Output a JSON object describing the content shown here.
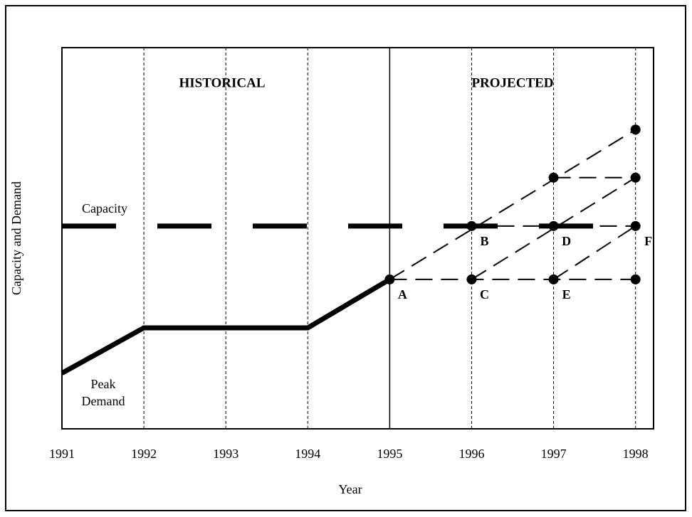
{
  "chart_data": {
    "type": "line",
    "xlabel": "Year",
    "ylabel": "Capacity  and Demand",
    "sections": [
      "HISTORICAL",
      "PROJECTED"
    ],
    "xlim": [
      1991,
      1998.22
    ],
    "ylim": [
      0,
      100
    ],
    "xticks": [
      1991,
      1992,
      1993,
      1994,
      1995,
      1996,
      1997,
      1998
    ],
    "divider_x": 1995,
    "grid": true,
    "series": [
      {
        "name": "Peak Demand",
        "color": "#000",
        "style": "solid",
        "width": 7,
        "x": [
          1991,
          1992,
          1994,
          1995
        ],
        "values": [
          14.6,
          26.5,
          26.5,
          39.2
        ]
      },
      {
        "name": "Capacity",
        "color": "#000",
        "style": "thick-dash",
        "width": 7,
        "x": [
          1991,
          1997.5
        ],
        "values": [
          53.2,
          53.2
        ]
      },
      {
        "color": "#000",
        "style": "dashed",
        "width": 2,
        "x": [
          1995,
          1998
        ],
        "values": [
          39.2,
          78.5
        ]
      },
      {
        "color": "#000",
        "style": "dashed",
        "width": 2,
        "x": [
          1996,
          1998
        ],
        "values": [
          39.2,
          65.9
        ]
      },
      {
        "color": "#000",
        "style": "dashed",
        "width": 2,
        "x": [
          1997,
          1998
        ],
        "values": [
          39.2,
          53.2
        ]
      },
      {
        "color": "#000",
        "style": "dashed",
        "width": 2,
        "x": [
          1995,
          1998
        ],
        "values": [
          39.2,
          39.2
        ]
      },
      {
        "color": "#000",
        "style": "dashed",
        "width": 2,
        "x": [
          1996,
          1998
        ],
        "values": [
          53.2,
          53.2
        ]
      },
      {
        "color": "#000",
        "style": "dashed",
        "width": 2,
        "x": [
          1997,
          1998
        ],
        "values": [
          65.9,
          65.9
        ]
      }
    ],
    "points": [
      {
        "label": "A",
        "x": 1995,
        "y": 39.2
      },
      {
        "label": "B",
        "x": 1996,
        "y": 53.2
      },
      {
        "label": "C",
        "x": 1996,
        "y": 39.2
      },
      {
        "label": "D",
        "x": 1997,
        "y": 53.2
      },
      {
        "label": "E",
        "x": 1997,
        "y": 39.2
      },
      {
        "label": "F",
        "x": 1998,
        "y": 53.2
      },
      {
        "x": 1997,
        "y": 65.9
      },
      {
        "x": 1998,
        "y": 65.9
      },
      {
        "x": 1998,
        "y": 78.5
      },
      {
        "x": 1998,
        "y": 39.2
      }
    ]
  }
}
